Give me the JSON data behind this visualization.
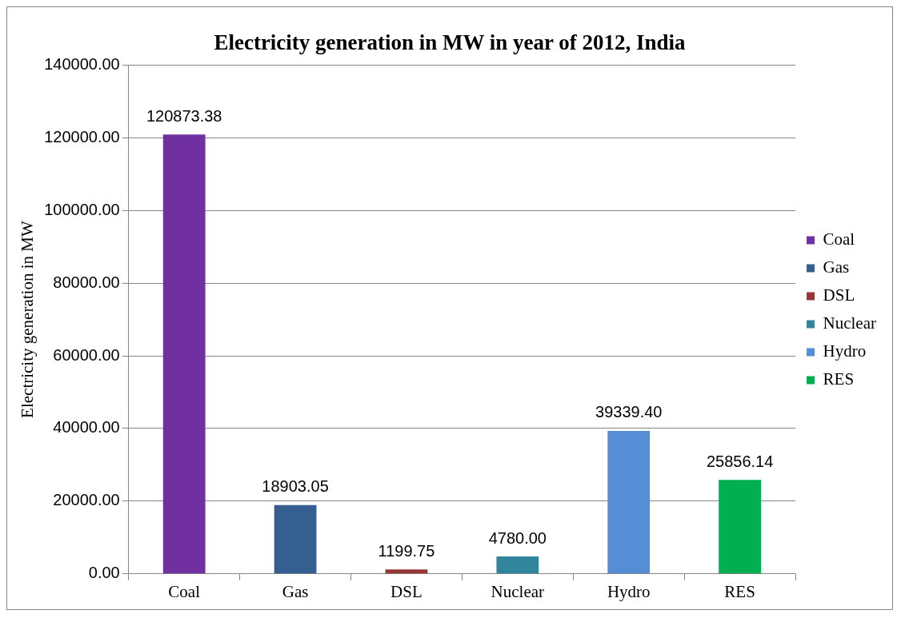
{
  "chart_data": {
    "type": "bar",
    "title": "Electricity generation in MW in year of 2012, India",
    "ylabel": "Electricity generation in MW",
    "categories": [
      "Coal",
      "Gas",
      "DSL",
      "Nuclear",
      "Hydro",
      "RES"
    ],
    "series": [
      {
        "name": "Coal",
        "color": "#7030a0",
        "values": [
          120873.38,
          null,
          null,
          null,
          null,
          null
        ],
        "value_labels": [
          "120873.38",
          null,
          null,
          null,
          null,
          null
        ]
      },
      {
        "name": "Gas",
        "color": "#365f91",
        "values": [
          null,
          18903.05,
          null,
          null,
          null,
          null
        ],
        "value_labels": [
          null,
          "18903.05",
          null,
          null,
          null,
          null
        ]
      },
      {
        "name": "DSL",
        "color": "#953735",
        "values": [
          null,
          null,
          1199.75,
          null,
          null,
          null
        ],
        "value_labels": [
          null,
          null,
          "1199.75",
          null,
          null,
          null
        ]
      },
      {
        "name": "Nuclear",
        "color": "#31859c",
        "values": [
          null,
          null,
          null,
          4780.0,
          null,
          null
        ],
        "value_labels": [
          null,
          null,
          null,
          "4780.00",
          null,
          null
        ]
      },
      {
        "name": "Hydro",
        "color": "#558ed5",
        "values": [
          null,
          null,
          null,
          null,
          39339.4,
          null
        ],
        "value_labels": [
          null,
          null,
          null,
          null,
          "39339.40",
          null
        ]
      },
      {
        "name": "RES",
        "color": "#00b050",
        "values": [
          null,
          null,
          null,
          null,
          null,
          25856.14
        ],
        "value_labels": [
          null,
          null,
          null,
          null,
          null,
          "25856.14"
        ]
      }
    ],
    "ylim": [
      0,
      140000
    ],
    "yticks": [
      {
        "value": 0,
        "label": "0.00"
      },
      {
        "value": 20000,
        "label": "20000.00"
      },
      {
        "value": 40000,
        "label": "40000.00"
      },
      {
        "value": 60000,
        "label": "60000.00"
      },
      {
        "value": 80000,
        "label": "80000.00"
      },
      {
        "value": 100000,
        "label": "100000.00"
      },
      {
        "value": 120000,
        "label": "120000.00"
      },
      {
        "value": 140000,
        "label": "140000.00"
      }
    ],
    "grid": "y",
    "legend": "right"
  }
}
